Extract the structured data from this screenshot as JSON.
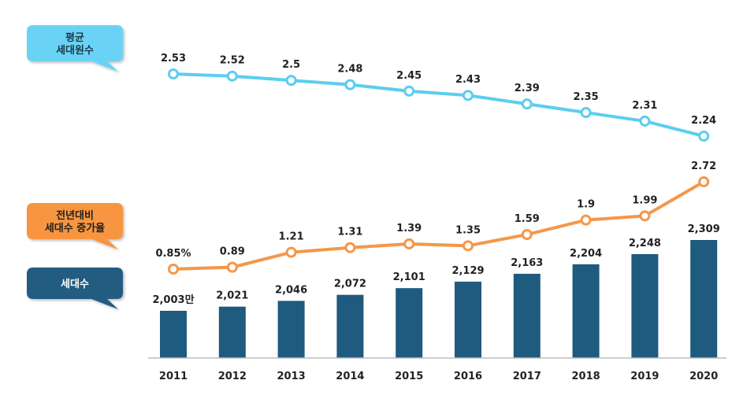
{
  "chart_data": {
    "type": "bar",
    "categories": [
      "2011",
      "2012",
      "2013",
      "2014",
      "2015",
      "2016",
      "2017",
      "2018",
      "2019",
      "2020"
    ],
    "series": [
      {
        "name": "세대수",
        "type": "bar",
        "values": [
          2003,
          2021,
          2046,
          2072,
          2101,
          2129,
          2163,
          2204,
          2248,
          2309
        ],
        "labels": [
          "2,003만",
          "2,021",
          "2,046",
          "2,072",
          "2,101",
          "2,129",
          "2,163",
          "2,204",
          "2,248",
          "2,309"
        ],
        "color": "#1f5a7f"
      },
      {
        "name": "전년대비 세대수 증가율",
        "type": "line",
        "values": [
          0.85,
          0.89,
          1.21,
          1.31,
          1.39,
          1.35,
          1.59,
          1.9,
          1.99,
          2.72
        ],
        "labels": [
          "0.85%",
          "0.89",
          "1.21",
          "1.31",
          "1.39",
          "1.35",
          "1.59",
          "1.9",
          "1.99",
          "2.72"
        ],
        "color": "#f4974a"
      },
      {
        "name": "평균 세대원수",
        "type": "line",
        "values": [
          2.53,
          2.52,
          2.5,
          2.48,
          2.45,
          2.43,
          2.39,
          2.35,
          2.31,
          2.24
        ],
        "labels": [
          "2.53",
          "2.52",
          "2.5",
          "2.48",
          "2.45",
          "2.43",
          "2.39",
          "2.35",
          "2.31",
          "2.24"
        ],
        "color": "#5ccdf0"
      }
    ],
    "legend_callouts": [
      {
        "lines": [
          "평균",
          "세대원수"
        ],
        "fill": "#6ad3f5",
        "text_color": "#1a3a4a"
      },
      {
        "lines": [
          "전년대비",
          "세대수 증가율"
        ],
        "fill": "#f7953f",
        "text_color": "#1f1f1f"
      },
      {
        "lines": [
          "세대수"
        ],
        "fill": "#215c81",
        "text_color": "#ffffff"
      }
    ],
    "xlabel": "",
    "ylabel": "",
    "grid": false
  }
}
